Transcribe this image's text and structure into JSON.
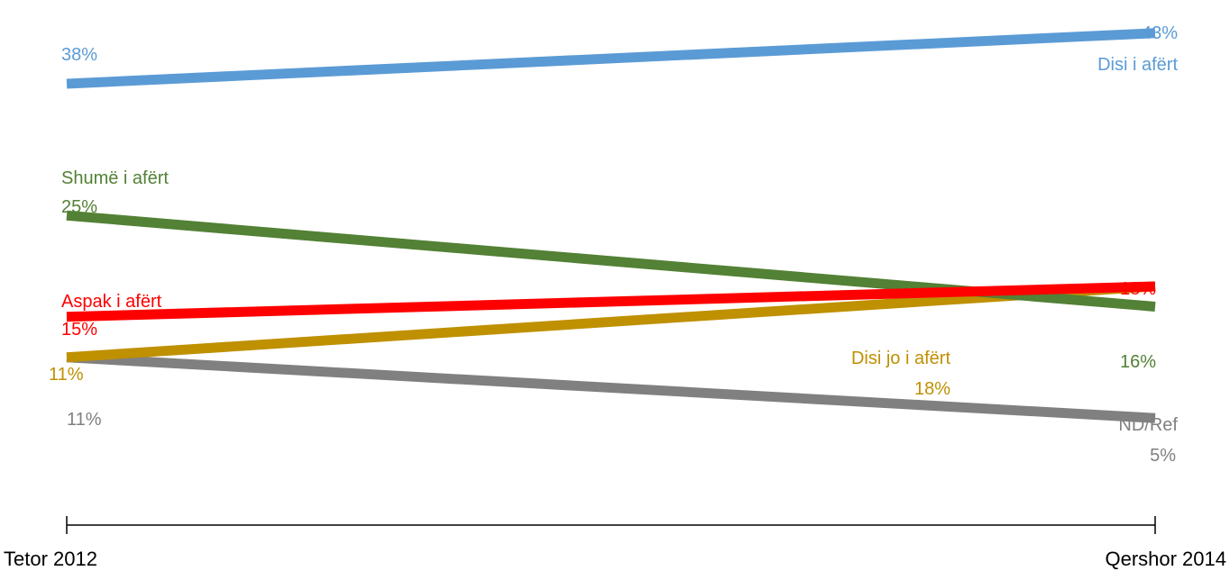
{
  "chart_data": {
    "type": "line",
    "categories": [
      "Tetor 2012",
      "Qershor 2014"
    ],
    "series": [
      {
        "name": "Disi i afërt",
        "values": [
          38,
          43
        ],
        "color": "#5B9BD5",
        "label_start": "38%",
        "label_end": "43%"
      },
      {
        "name": "Shumë i afërt",
        "values": [
          25,
          16
        ],
        "color": "#538135",
        "label_start": "25%",
        "label_end": "16%"
      },
      {
        "name": "Aspak i afërt",
        "values": [
          15,
          18
        ],
        "color": "#FF0000",
        "label_start": "15%",
        "label_end": "18%"
      },
      {
        "name": "Disi jo i afërt",
        "values": [
          11,
          18
        ],
        "color": "#BF9000",
        "label_start": "11%",
        "label_end": "18%"
      },
      {
        "name": "ND/Ref",
        "values": [
          11,
          5
        ],
        "color": "#808080",
        "label_start": "11%",
        "label_end": "5%"
      }
    ],
    "title": "",
    "xlabel": "",
    "ylabel": "",
    "grid": false,
    "legend": "none"
  }
}
